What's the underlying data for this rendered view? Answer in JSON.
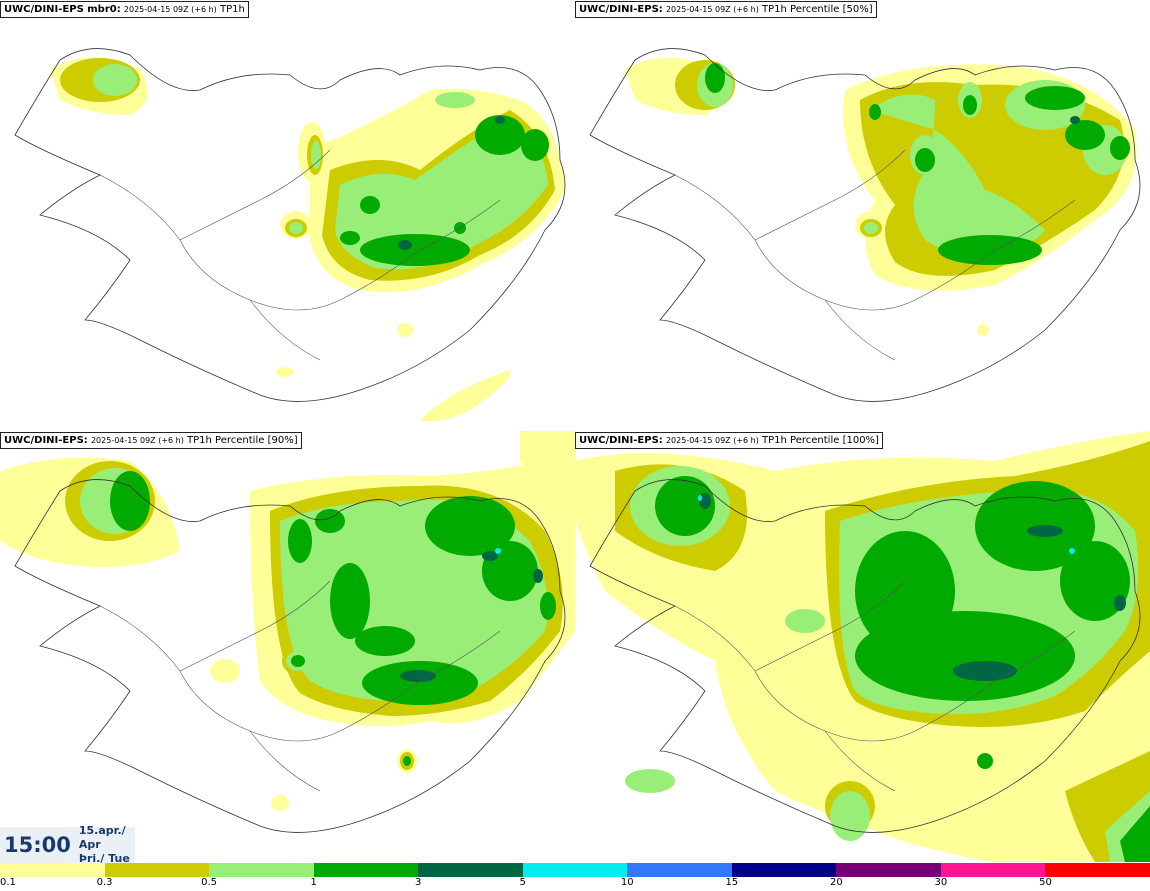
{
  "panels": [
    {
      "model": "UWC/DINI-EPS",
      "suffix": " mbr0:",
      "run": "2025-04-15 09Z (+6 h)",
      "product": "TP1h"
    },
    {
      "model": "UWC/DINI-EPS",
      "suffix": ":",
      "run": "2025-04-15 09Z (+6 h)",
      "product": "TP1h Percentile [50%]"
    },
    {
      "model": "UWC/DINI-EPS",
      "suffix": ":",
      "run": "2025-04-15 09Z (+6 h)",
      "product": "TP1h Percentile [90%]"
    },
    {
      "model": "UWC/DINI-EPS",
      "suffix": ":",
      "run": "2025-04-15 09Z (+6 h)",
      "product": "TP1h Percentile [100%]"
    }
  ],
  "valid_time": {
    "time": "15:00",
    "date": "15.apr./ Apr",
    "weekday": "Þri./ Tue"
  },
  "colorbar": {
    "colors": [
      "#ffff99",
      "#cccc00",
      "#99ee77",
      "#00aa00",
      "#006644",
      "#00eeee",
      "#3377ff",
      "#000088",
      "#770077",
      "#ff1493",
      "#ff0000"
    ],
    "ticks": [
      "0.1",
      "0.3",
      "0.5",
      "1",
      "3",
      "5",
      "10",
      "15",
      "20",
      "30",
      "50"
    ]
  }
}
